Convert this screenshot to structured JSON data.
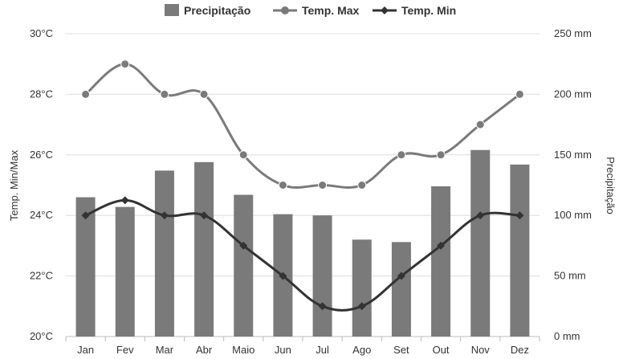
{
  "chart_data": {
    "type": "bar",
    "categories": [
      "Jan",
      "Fev",
      "Mar",
      "Abr",
      "Maio",
      "Jun",
      "Jul",
      "Ago",
      "Set",
      "Out",
      "Nov",
      "Dez"
    ],
    "series": [
      {
        "name": "Precipitação",
        "type": "bar",
        "axis": "right",
        "color": "#7a7a7a",
        "values": [
          115,
          107,
          137,
          144,
          117,
          101,
          100,
          80,
          78,
          124,
          154,
          142
        ]
      },
      {
        "name": "Temp. Max",
        "type": "line",
        "axis": "left",
        "color": "#7a7a7a",
        "marker": "circle",
        "values": [
          28,
          29,
          28,
          28,
          26,
          25,
          25,
          25,
          26,
          26,
          27,
          28
        ]
      },
      {
        "name": "Temp. Min",
        "type": "line",
        "axis": "left",
        "color": "#333333",
        "marker": "diamond",
        "values": [
          24,
          24.5,
          24,
          24,
          23,
          22,
          21,
          21,
          22,
          23,
          24,
          24
        ]
      }
    ],
    "y_left": {
      "label": "Temp. Min/Max",
      "min": 20,
      "max": 30,
      "ticks": [
        "20°C",
        "22°C",
        "24°C",
        "26°C",
        "28°C",
        "30°C"
      ]
    },
    "y_right": {
      "label": "Precipitação",
      "min": 0,
      "max": 250,
      "ticks": [
        "0 mm",
        "50 mm",
        "100 mm",
        "150 mm",
        "200 mm",
        "250 mm"
      ]
    },
    "grid": true,
    "legend_position": "top-center"
  }
}
